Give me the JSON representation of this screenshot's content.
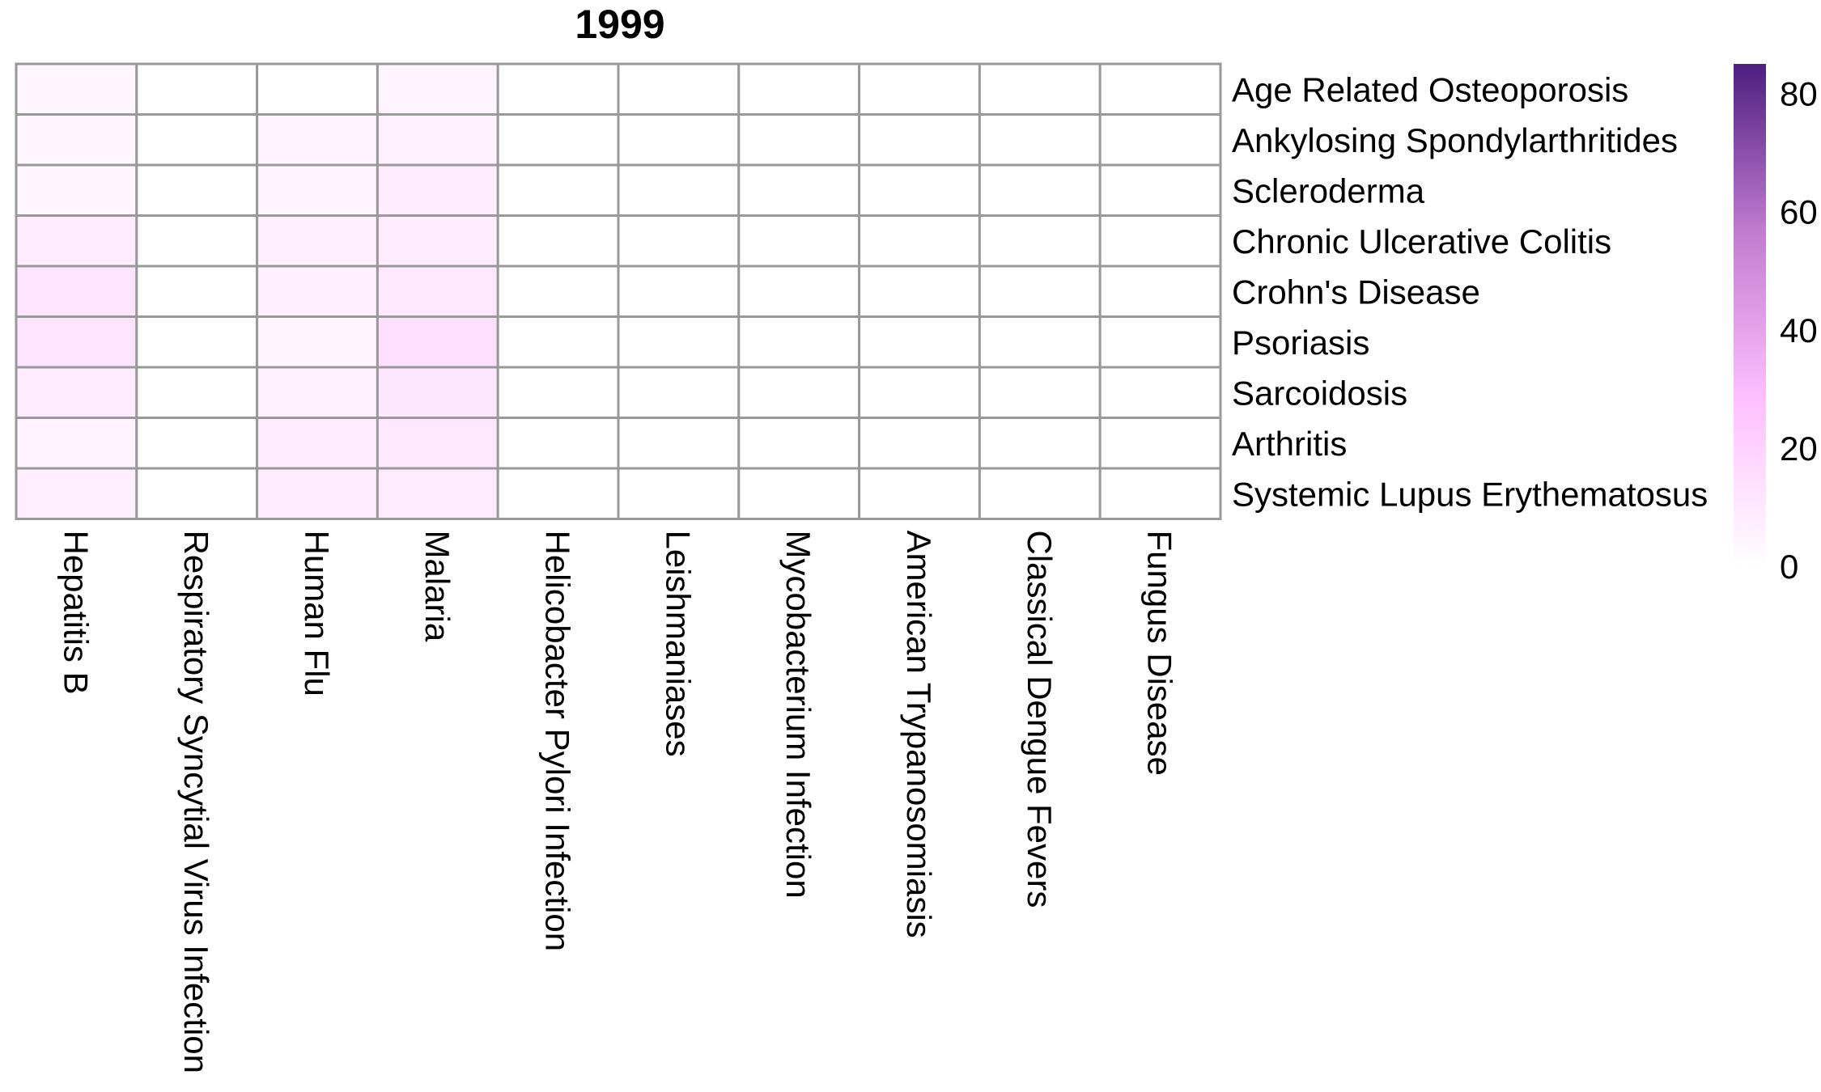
{
  "chart_data": {
    "type": "heatmap",
    "title": "1999",
    "rows": [
      "Age Related Osteoporosis",
      "Ankylosing Spondylarthritides",
      "Scleroderma",
      "Chronic Ulcerative Colitis",
      "Crohn's Disease",
      "Psoriasis",
      "Sarcoidosis",
      "Arthritis",
      "Systemic Lupus Erythematosus"
    ],
    "columns": [
      "Hepatitis B",
      "Respiratory Syncytial Virus Infection",
      "Human Flu",
      "Malaria",
      "Helicobacter Pylori Infection",
      "Leishmaniases",
      "Mycobacterium Infection",
      "American Trypanosomiasis",
      "Classical Dengue Fevers",
      "Fungus Disease"
    ],
    "values": [
      [
        4,
        0,
        0,
        5,
        0,
        0,
        0,
        0,
        0,
        0
      ],
      [
        4,
        0,
        5,
        6,
        0,
        0,
        0,
        0,
        0,
        0
      ],
      [
        4,
        0,
        5,
        8,
        0,
        0,
        0,
        0,
        0,
        0
      ],
      [
        8,
        0,
        7,
        8,
        0,
        0,
        0,
        0,
        0,
        0
      ],
      [
        12,
        0,
        7,
        10,
        0,
        0,
        0,
        0,
        0,
        0
      ],
      [
        12,
        0,
        4,
        14,
        0,
        0,
        0,
        0,
        0,
        0
      ],
      [
        9,
        0,
        6,
        11,
        0,
        0,
        0,
        0,
        0,
        0
      ],
      [
        5,
        0,
        8,
        10,
        0,
        0,
        0,
        0,
        0,
        0
      ],
      [
        7,
        0,
        8,
        9,
        0,
        0,
        0,
        0,
        0,
        0
      ]
    ],
    "colorbar": {
      "min": 0,
      "max": 85,
      "ticks": [
        0,
        20,
        40,
        60,
        80
      ],
      "colors": [
        "#ffffff",
        "#ffbfff",
        "#c27bcf",
        "#4c1f80"
      ],
      "placement": "right"
    },
    "grid_color": "#999999"
  }
}
